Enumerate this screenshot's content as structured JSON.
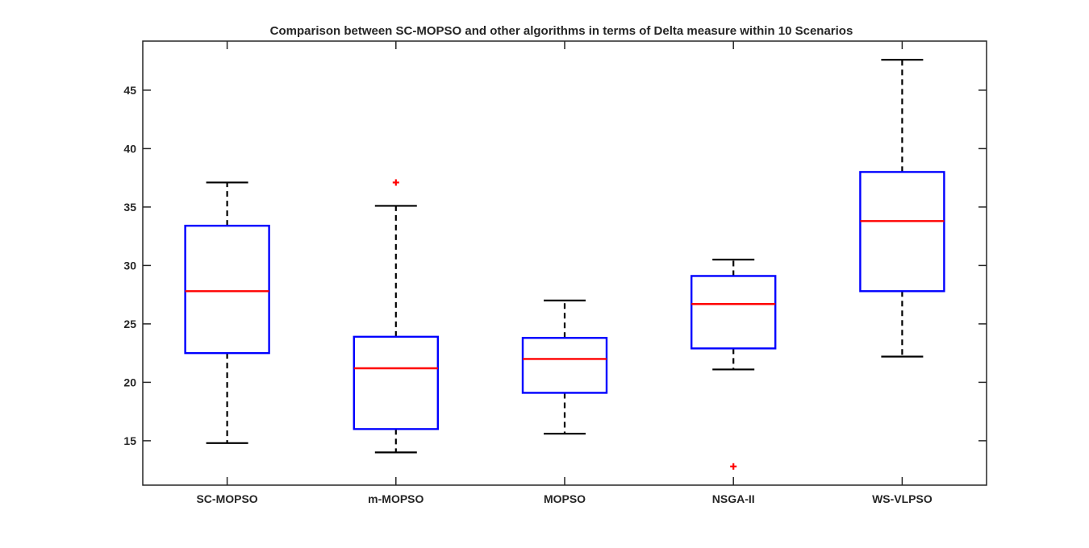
{
  "chart_data": {
    "type": "boxplot",
    "title": "Comparison between SC-MOPSO and other algorithms in terms of Delta measure within 10 Scenarios",
    "xlabel": "",
    "ylabel": "",
    "ylim": [
      11.2,
      49.2
    ],
    "yticks": [
      15,
      20,
      25,
      30,
      35,
      40,
      45
    ],
    "grid": false,
    "categories": [
      "SC-MOPSO",
      "m-MOPSO",
      "MOPSO",
      "NSGA-II",
      "WS-VLPSO"
    ],
    "boxes": [
      {
        "label": "SC-MOPSO",
        "whisker_low": 14.8,
        "q1": 22.5,
        "median": 27.8,
        "q3": 33.4,
        "whisker_high": 37.1,
        "outliers": []
      },
      {
        "label": "m-MOPSO",
        "whisker_low": 14.0,
        "q1": 16.0,
        "median": 21.2,
        "q3": 23.9,
        "whisker_high": 35.1,
        "outliers": [
          37.1
        ]
      },
      {
        "label": "MOPSO",
        "whisker_low": 15.6,
        "q1": 19.1,
        "median": 22.0,
        "q3": 23.8,
        "whisker_high": 27.0,
        "outliers": []
      },
      {
        "label": "NSGA-II",
        "whisker_low": 21.1,
        "q1": 22.9,
        "median": 26.7,
        "q3": 29.1,
        "whisker_high": 30.5,
        "outliers": [
          12.8
        ]
      },
      {
        "label": "WS-VLPSO",
        "whisker_low": 22.2,
        "q1": 27.8,
        "median": 33.8,
        "q3": 38.0,
        "whisker_high": 47.6,
        "outliers": []
      }
    ],
    "colors": {
      "box": "#0000ff",
      "median": "#ff0000",
      "whisker": "#000000",
      "outlier": "#ff0000",
      "axes": "#262626"
    }
  }
}
